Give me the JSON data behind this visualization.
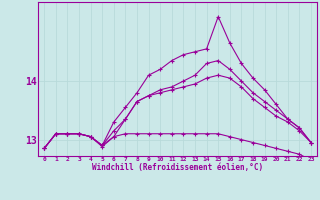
{
  "xlabel": "Windchill (Refroidissement éolien,°C)",
  "background_color": "#cbe8e8",
  "line_color": "#990099",
  "grid_color": "#b8dada",
  "xlim": [
    -0.5,
    23.5
  ],
  "ylim": [
    12.72,
    15.35
  ],
  "yticks": [
    13,
    14
  ],
  "xticks": [
    0,
    1,
    2,
    3,
    4,
    5,
    6,
    7,
    8,
    9,
    10,
    11,
    12,
    13,
    14,
    15,
    16,
    17,
    18,
    19,
    20,
    21,
    22,
    23
  ],
  "series": {
    "line1": [
      12.85,
      13.1,
      13.1,
      13.1,
      13.05,
      12.9,
      13.05,
      13.35,
      13.65,
      13.75,
      13.8,
      13.85,
      13.9,
      13.95,
      14.05,
      14.1,
      14.05,
      13.9,
      13.7,
      13.55,
      13.4,
      13.3,
      13.15,
      12.95
    ],
    "line2": [
      12.85,
      13.1,
      13.1,
      13.1,
      13.05,
      12.9,
      13.15,
      13.35,
      13.65,
      13.75,
      13.85,
      13.9,
      14.0,
      14.1,
      14.3,
      14.35,
      14.2,
      14.0,
      13.8,
      13.65,
      13.5,
      13.35,
      13.2,
      12.95
    ],
    "line3": [
      12.85,
      13.1,
      13.1,
      13.1,
      13.05,
      12.9,
      13.3,
      13.55,
      13.8,
      14.1,
      14.2,
      14.35,
      14.45,
      14.5,
      14.55,
      15.1,
      14.65,
      14.3,
      14.05,
      13.85,
      13.6,
      13.35,
      13.2,
      12.95
    ],
    "line4": [
      12.85,
      13.1,
      13.1,
      13.1,
      13.05,
      12.88,
      13.05,
      13.1,
      13.1,
      13.1,
      13.1,
      13.1,
      13.1,
      13.1,
      13.1,
      13.1,
      13.05,
      13.0,
      12.95,
      12.9,
      12.85,
      12.8,
      12.75,
      12.65
    ]
  }
}
